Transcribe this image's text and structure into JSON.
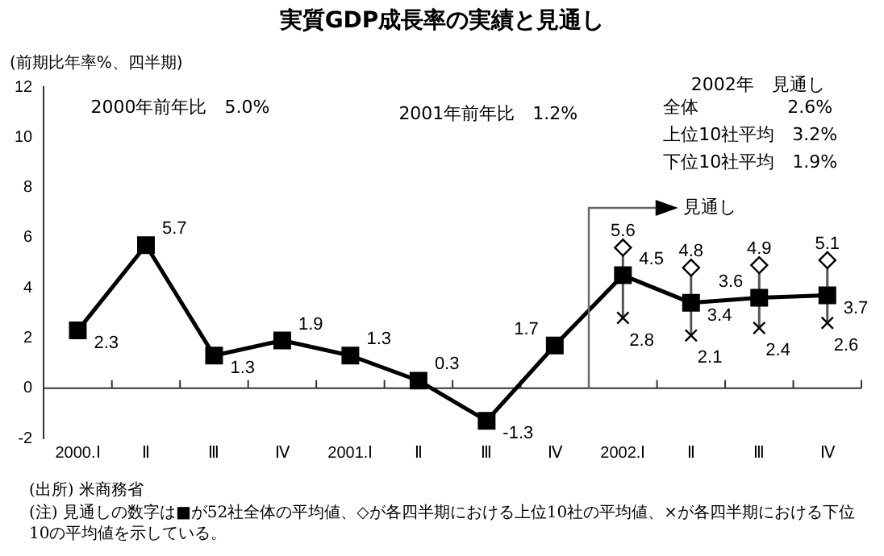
{
  "chart_data": {
    "type": "line",
    "title": "実質GDP成長率の実績と見通し",
    "ylabel": "(前期比年率%、四半期)",
    "categories": [
      "2000.Ⅰ",
      "Ⅱ",
      "Ⅲ",
      "Ⅳ",
      "2001.Ⅰ",
      "Ⅱ",
      "Ⅲ",
      "Ⅳ",
      "2002.Ⅰ",
      "Ⅱ",
      "Ⅲ",
      "Ⅳ"
    ],
    "series": [
      {
        "color": "#000000",
        "marker": "square",
        "values": [
          2.3,
          5.7,
          1.3,
          1.9,
          1.3,
          0.3,
          -1.3,
          1.7,
          4.5,
          3.4,
          3.6,
          3.7
        ]
      },
      {
        "type": "scatter",
        "color": "#000000",
        "marker": "diamond",
        "values": [
          null,
          null,
          null,
          null,
          null,
          null,
          null,
          null,
          5.6,
          4.8,
          4.9,
          5.1
        ]
      },
      {
        "type": "scatter",
        "color": "#000000",
        "marker": "cross",
        "values": [
          null,
          null,
          null,
          null,
          null,
          null,
          null,
          null,
          2.8,
          2.1,
          2.4,
          2.6
        ]
      }
    ],
    "ref_lines": [
      {
        "axis": "y",
        "value": 0,
        "color": "#333333"
      }
    ],
    "ylim": [
      -2,
      12
    ],
    "yticks": [
      -2,
      0,
      2,
      4,
      6,
      8,
      10,
      12
    ],
    "grid": false,
    "legend": false,
    "data_labels": true,
    "annotations": [
      "2000年前年比　5.0%",
      "2001年前年比　1.2%",
      "2002年　見通し",
      "全体　　　　　2.6%",
      "上位10社平均　3.2%",
      "下位10社平均　1.9%",
      "見通し",
      "(出所) 米商務省",
      "(注) 見通しの数字は■が52社全体の平均値、◇が各四半期における上位10社の平均値、×が各四半期における下位10の平均値を示している。"
    ]
  }
}
